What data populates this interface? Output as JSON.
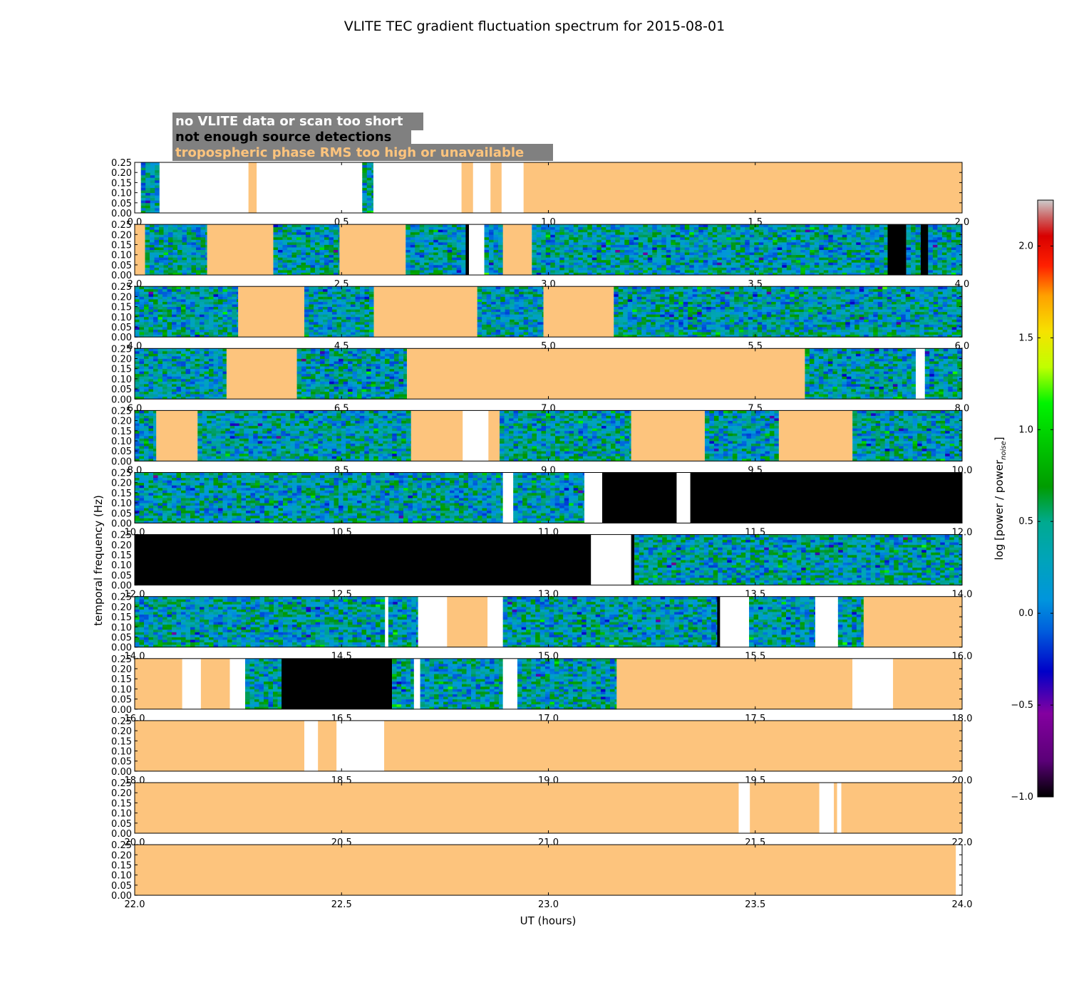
{
  "chart_data": {
    "type": "heatmap",
    "title": "VLITE TEC gradient fluctuation spectrum for 2015-08-01",
    "xlabel": "UT (hours)",
    "ylabel": "temporal frequency (Hz)",
    "colorbar": {
      "label": "log [power / power",
      "label_sub": "noise",
      "label_close": "]",
      "range": [
        -1.0,
        2.25
      ],
      "ticks": [
        "-1.0",
        "-0.5",
        "0.0",
        "0.5",
        "1.0",
        "1.5",
        "2.0"
      ],
      "colormap": "nipy_spectral"
    },
    "ylim": [
      0.0,
      0.25
    ],
    "y_ticks": [
      "0.00",
      "0.05",
      "0.10",
      "0.15",
      "0.20",
      "0.25"
    ],
    "legend": [
      {
        "label": "no VLITE data or scan too short",
        "color": "#ffffff"
      },
      {
        "label": "not enough source detections",
        "color": "#000000"
      },
      {
        "label": "tropospheric phase RMS too high or unavailable",
        "color": "#fdc47d"
      }
    ],
    "legend_background": "#808080",
    "flag_colors": {
      "nodata": "#ffffff",
      "nodet": "#000000",
      "trop": "#fdc47d"
    },
    "panels": [
      {
        "xlim": [
          0.0,
          2.0
        ],
        "x_ticks": [
          "0.0",
          "0.5",
          "1.0",
          "1.5",
          "2.0"
        ],
        "segments": [
          [
            "nodata",
            0.0,
            0.015
          ],
          [
            "data",
            0.015,
            0.06
          ],
          [
            "nodata",
            0.06,
            0.275
          ],
          [
            "trop",
            0.275,
            0.295
          ],
          [
            "nodata",
            0.295,
            0.55
          ],
          [
            "data",
            0.55,
            0.577
          ],
          [
            "nodata",
            0.577,
            0.79
          ],
          [
            "trop",
            0.79,
            0.818
          ],
          [
            "nodata",
            0.818,
            0.86
          ],
          [
            "trop",
            0.86,
            0.887
          ],
          [
            "nodata",
            0.887,
            0.94
          ],
          [
            "trop",
            0.94,
            2.0
          ]
        ]
      },
      {
        "xlim": [
          2.0,
          4.0
        ],
        "x_ticks": [
          "2.0",
          "2.5",
          "3.0",
          "3.5",
          "4.0"
        ],
        "segments": [
          [
            "trop",
            2.0,
            2.025
          ],
          [
            "data",
            2.025,
            2.175
          ],
          [
            "trop",
            2.175,
            2.335
          ],
          [
            "data",
            2.335,
            2.495
          ],
          [
            "trop",
            2.495,
            2.655
          ],
          [
            "data",
            2.655,
            2.8
          ],
          [
            "nodet",
            2.8,
            2.808
          ],
          [
            "nodata",
            2.808,
            2.845
          ],
          [
            "data",
            2.845,
            2.89
          ],
          [
            "trop",
            2.89,
            2.96
          ],
          [
            "data",
            2.96,
            3.82
          ],
          [
            "nodet",
            3.82,
            3.865
          ],
          [
            "data",
            3.865,
            3.9
          ],
          [
            "nodet",
            3.9,
            3.918
          ],
          [
            "data",
            3.918,
            4.0
          ]
        ]
      },
      {
        "xlim": [
          4.0,
          6.0
        ],
        "x_ticks": [
          "4.0",
          "4.5",
          "5.0",
          "5.5",
          "6.0"
        ],
        "segments": [
          [
            "data",
            4.0,
            4.25
          ],
          [
            "trop",
            4.25,
            4.41
          ],
          [
            "data",
            4.41,
            4.578
          ],
          [
            "trop",
            4.578,
            4.828
          ],
          [
            "data",
            4.828,
            4.988
          ],
          [
            "trop",
            4.988,
            5.158
          ],
          [
            "data",
            5.158,
            6.0
          ]
        ]
      },
      {
        "xlim": [
          6.0,
          8.0
        ],
        "x_ticks": [
          "6.0",
          "6.5",
          "7.0",
          "7.5",
          "8.0"
        ],
        "segments": [
          [
            "data",
            6.0,
            6.222
          ],
          [
            "trop",
            6.222,
            6.392
          ],
          [
            "data",
            6.392,
            6.658
          ],
          [
            "trop",
            6.658,
            7.62
          ],
          [
            "data",
            7.62,
            7.888
          ],
          [
            "nodata",
            7.888,
            7.91
          ],
          [
            "data",
            7.91,
            8.0
          ]
        ]
      },
      {
        "xlim": [
          8.0,
          10.0
        ],
        "x_ticks": [
          "8.0",
          "8.5",
          "9.0",
          "9.5",
          "10.0"
        ],
        "segments": [
          [
            "data",
            8.0,
            8.052
          ],
          [
            "trop",
            8.052,
            8.152
          ],
          [
            "data",
            8.152,
            8.668
          ],
          [
            "trop",
            8.668,
            8.793
          ],
          [
            "nodata",
            8.793,
            8.855
          ],
          [
            "trop",
            8.855,
            8.882
          ],
          [
            "data",
            8.882,
            9.2
          ],
          [
            "trop",
            9.2,
            9.378
          ],
          [
            "data",
            9.378,
            9.557
          ],
          [
            "trop",
            9.557,
            9.735
          ],
          [
            "data",
            9.735,
            10.0
          ]
        ]
      },
      {
        "xlim": [
          10.0,
          12.0
        ],
        "x_ticks": [
          "10.0",
          "10.5",
          "11.0",
          "11.5",
          "12.0"
        ],
        "segments": [
          [
            "data",
            10.0,
            10.89
          ],
          [
            "nodata",
            10.89,
            10.915
          ],
          [
            "data",
            10.915,
            11.087
          ],
          [
            "nodata",
            11.087,
            11.13
          ],
          [
            "nodet",
            11.13,
            11.31
          ],
          [
            "nodata",
            11.31,
            11.343
          ],
          [
            "nodet",
            11.343,
            12.0
          ]
        ]
      },
      {
        "xlim": [
          12.0,
          14.0
        ],
        "x_ticks": [
          "12.0",
          "12.5",
          "13.0",
          "13.5",
          "14.0"
        ],
        "segments": [
          [
            "nodet",
            12.0,
            13.103
          ],
          [
            "nodata",
            13.103,
            13.2
          ],
          [
            "nodet",
            13.2,
            13.208
          ],
          [
            "data",
            13.208,
            14.0
          ]
        ]
      },
      {
        "xlim": [
          14.0,
          16.0
        ],
        "x_ticks": [
          "14.0",
          "14.5",
          "15.0",
          "15.5",
          "16.0"
        ],
        "segments": [
          [
            "data",
            14.0,
            14.605
          ],
          [
            "nodata",
            14.605,
            14.613
          ],
          [
            "data",
            14.613,
            14.685
          ],
          [
            "nodata",
            14.685,
            14.755
          ],
          [
            "trop",
            14.755,
            14.853
          ],
          [
            "nodata",
            14.853,
            14.89
          ],
          [
            "data",
            14.89,
            15.408
          ],
          [
            "nodet",
            15.408,
            15.415
          ],
          [
            "nodata",
            15.415,
            15.485
          ],
          [
            "data",
            15.485,
            15.645
          ],
          [
            "nodata",
            15.645,
            15.7
          ],
          [
            "data",
            15.7,
            15.762
          ],
          [
            "trop",
            15.762,
            16.0
          ]
        ]
      },
      {
        "xlim": [
          16.0,
          18.0
        ],
        "x_ticks": [
          "16.0",
          "16.5",
          "17.0",
          "17.5",
          "18.0"
        ],
        "segments": [
          [
            "trop",
            16.0,
            16.115
          ],
          [
            "nodata",
            16.115,
            16.16
          ],
          [
            "trop",
            16.16,
            16.23
          ],
          [
            "nodata",
            16.23,
            16.267
          ],
          [
            "data",
            16.267,
            16.355
          ],
          [
            "nodet",
            16.355,
            16.622
          ],
          [
            "data",
            16.622,
            16.675
          ],
          [
            "nodata",
            16.675,
            16.69
          ],
          [
            "data",
            16.69,
            16.89
          ],
          [
            "nodata",
            16.89,
            16.925
          ],
          [
            "data",
            16.925,
            17.165
          ],
          [
            "trop",
            17.165,
            17.735
          ],
          [
            "nodata",
            17.735,
            17.833
          ],
          [
            "trop",
            17.833,
            18.0
          ]
        ]
      },
      {
        "xlim": [
          18.0,
          20.0
        ],
        "x_ticks": [
          "18.0",
          "18.5",
          "19.0",
          "19.5",
          "20.0"
        ],
        "segments": [
          [
            "trop",
            18.0,
            18.41
          ],
          [
            "nodata",
            18.41,
            18.443
          ],
          [
            "trop",
            18.443,
            18.488
          ],
          [
            "nodata",
            18.488,
            18.603
          ],
          [
            "trop",
            18.603,
            20.0
          ]
        ]
      },
      {
        "xlim": [
          20.0,
          22.0
        ],
        "x_ticks": [
          "20.0",
          "20.5",
          "21.0",
          "21.5",
          "22.0"
        ],
        "segments": [
          [
            "trop",
            20.0,
            21.46
          ],
          [
            "nodata",
            21.46,
            21.487
          ],
          [
            "trop",
            21.487,
            21.655
          ],
          [
            "nodata",
            21.655,
            21.69
          ],
          [
            "trop",
            21.69,
            21.698
          ],
          [
            "nodata",
            21.698,
            21.708
          ],
          [
            "trop",
            21.708,
            22.0
          ]
        ]
      },
      {
        "xlim": [
          22.0,
          24.0
        ],
        "x_ticks": [
          "22.0",
          "22.5",
          "23.0",
          "23.5",
          "24.0"
        ],
        "segments": [
          [
            "trop",
            22.0,
            23.985
          ],
          [
            "nodata",
            23.985,
            24.0
          ]
        ]
      }
    ]
  }
}
